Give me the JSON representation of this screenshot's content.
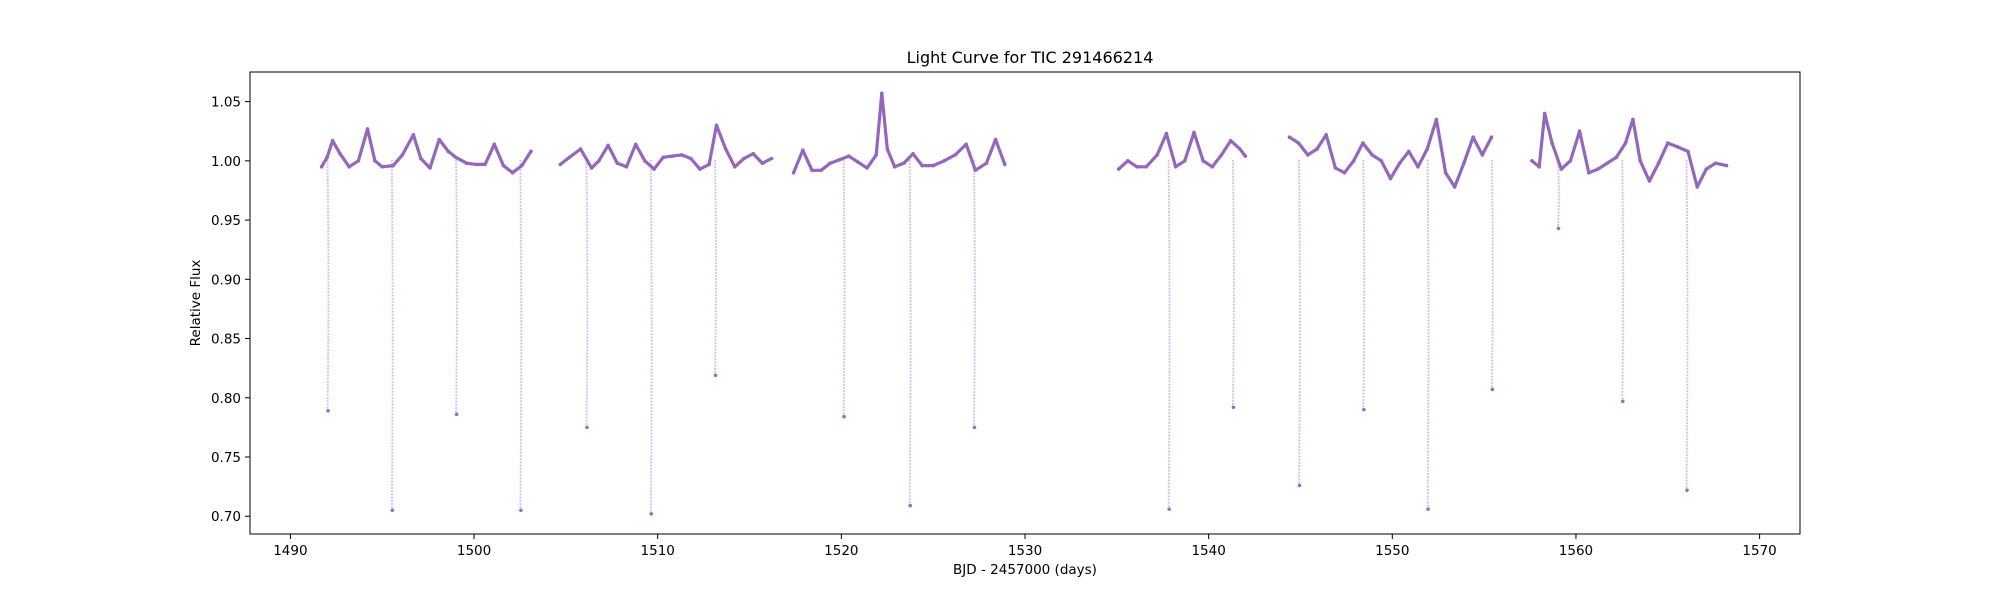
{
  "chart_data": {
    "type": "scatter",
    "title": "Light Curve for TIC 291466214",
    "xlabel": "BJD - 2457000 (days)",
    "ylabel": "Relative Flux",
    "xlim": [
      1487.8,
      1572.2
    ],
    "ylim": [
      0.685,
      1.075
    ],
    "x_ticks": [
      1490,
      1500,
      1510,
      1520,
      1530,
      1540,
      1550,
      1560,
      1570
    ],
    "x_tick_labels": [
      "1490",
      "1500",
      "1510",
      "1520",
      "1530",
      "1540",
      "1550",
      "1560",
      "1570"
    ],
    "y_ticks": [
      0.7,
      0.75,
      0.8,
      0.85,
      0.9,
      0.95,
      1.0,
      1.05
    ],
    "y_tick_labels": [
      "0.70",
      "0.75",
      "0.80",
      "0.85",
      "0.90",
      "0.95",
      "1.00",
      "1.05"
    ],
    "grid": false,
    "marker_color": "#9467bd",
    "series": [
      {
        "segments": [
          {
            "x": [
              1491.7,
              1492.0,
              1492.3,
              1492.7,
              1493.2,
              1493.7,
              1494.2,
              1494.6,
              1495.0,
              1495.6,
              1496.1,
              1496.7,
              1497.1,
              1497.6,
              1498.1,
              1498.6,
              1499.0,
              1499.6,
              1500.1,
              1500.6,
              1501.1,
              1501.6,
              1502.1,
              1502.6,
              1503.1
            ],
            "y": [
              0.995,
              1.003,
              1.017,
              1.006,
              0.995,
              1.0,
              1.027,
              1.0,
              0.995,
              0.996,
              1.005,
              1.022,
              1.002,
              0.994,
              1.018,
              1.008,
              1.003,
              0.998,
              0.997,
              0.997,
              1.014,
              0.996,
              0.99,
              0.996,
              1.008
            ]
          },
          {
            "x": [
              1504.7,
              1505.2,
              1505.8,
              1506.4,
              1506.8,
              1507.3,
              1507.8,
              1508.3,
              1508.8,
              1509.3,
              1509.8,
              1510.3,
              1510.8,
              1511.3,
              1511.8,
              1512.3,
              1512.8,
              1513.2,
              1513.7,
              1514.2,
              1514.7,
              1515.2,
              1515.7,
              1516.2
            ],
            "y": [
              0.997,
              1.003,
              1.01,
              0.994,
              1.0,
              1.013,
              0.998,
              0.995,
              1.014,
              1.0,
              0.993,
              1.003,
              1.004,
              1.005,
              1.002,
              0.993,
              0.997,
              1.03,
              1.01,
              0.995,
              1.002,
              1.006,
              0.998,
              1.002
            ]
          },
          {
            "x": [
              1517.4,
              1517.9,
              1518.4,
              1518.9,
              1519.4,
              1519.9,
              1520.4,
              1520.9,
              1521.4,
              1521.9,
              1522.2,
              1522.5,
              1522.9,
              1523.4,
              1523.9,
              1524.4,
              1525.0,
              1525.6,
              1526.2,
              1526.8,
              1527.3,
              1527.9,
              1528.4,
              1528.9
            ],
            "y": [
              0.99,
              1.009,
              0.992,
              0.992,
              0.998,
              1.001,
              1.004,
              0.999,
              0.994,
              1.005,
              1.057,
              1.01,
              0.995,
              0.998,
              1.006,
              0.996,
              0.996,
              1.0,
              1.005,
              1.014,
              0.992,
              0.998,
              1.018,
              0.997
            ]
          },
          {
            "x": [
              1535.1,
              1535.6,
              1536.1,
              1536.6,
              1537.2,
              1537.7,
              1538.2,
              1538.7,
              1539.2,
              1539.7,
              1540.2,
              1540.7,
              1541.2,
              1541.7,
              1542.0
            ],
            "y": [
              0.993,
              1.0,
              0.995,
              0.995,
              1.005,
              1.023,
              0.995,
              1.0,
              1.024,
              1.0,
              0.995,
              1.005,
              1.017,
              1.01,
              1.004
            ]
          },
          {
            "x": [
              1544.4,
              1544.9,
              1545.4,
              1545.9,
              1546.4,
              1546.9,
              1547.4,
              1547.9,
              1548.4,
              1548.9,
              1549.4,
              1549.9,
              1550.4,
              1550.9,
              1551.4,
              1551.9,
              1552.4,
              1552.9,
              1553.4,
              1553.9,
              1554.4,
              1554.9,
              1555.4
            ],
            "y": [
              1.02,
              1.015,
              1.005,
              1.01,
              1.022,
              0.994,
              0.99,
              1.0,
              1.015,
              1.005,
              1.0,
              0.985,
              0.998,
              1.008,
              0.995,
              1.01,
              1.035,
              0.99,
              0.978,
              0.998,
              1.02,
              1.005,
              1.02
            ]
          },
          {
            "x": [
              1557.6,
              1558.0,
              1558.3,
              1558.7,
              1559.2,
              1559.7,
              1560.2,
              1560.7,
              1561.2,
              1561.7,
              1562.2,
              1562.7,
              1563.1,
              1563.5,
              1564.0,
              1564.5,
              1565.0,
              1565.5,
              1566.1,
              1566.6,
              1567.1,
              1567.6,
              1568.2
            ],
            "y": [
              1.0,
              0.995,
              1.04,
              1.015,
              0.993,
              1.0,
              1.025,
              0.99,
              0.993,
              0.998,
              1.003,
              1.015,
              1.035,
              1.0,
              0.983,
              0.998,
              1.015,
              1.012,
              1.008,
              0.978,
              0.993,
              0.998,
              0.996
            ]
          }
        ]
      }
    ],
    "eclipses": [
      {
        "t": 1492.05,
        "min": 0.789
      },
      {
        "t": 1495.55,
        "min": 0.705
      },
      {
        "t": 1499.05,
        "min": 0.786
      },
      {
        "t": 1502.55,
        "min": 0.705
      },
      {
        "t": 1506.15,
        "min": 0.775
      },
      {
        "t": 1509.65,
        "min": 0.702
      },
      {
        "t": 1513.15,
        "min": 0.819
      },
      {
        "t": 1520.15,
        "min": 0.784
      },
      {
        "t": 1523.75,
        "min": 0.709
      },
      {
        "t": 1527.25,
        "min": 0.775
      },
      {
        "t": 1537.85,
        "min": 0.706
      },
      {
        "t": 1541.35,
        "min": 0.792
      },
      {
        "t": 1544.95,
        "min": 0.726
      },
      {
        "t": 1548.45,
        "min": 0.79
      },
      {
        "t": 1551.95,
        "min": 0.706
      },
      {
        "t": 1555.45,
        "min": 0.807
      },
      {
        "t": 1559.05,
        "min": 0.943
      },
      {
        "t": 1562.55,
        "min": 0.797
      },
      {
        "t": 1566.05,
        "min": 0.722
      }
    ]
  }
}
